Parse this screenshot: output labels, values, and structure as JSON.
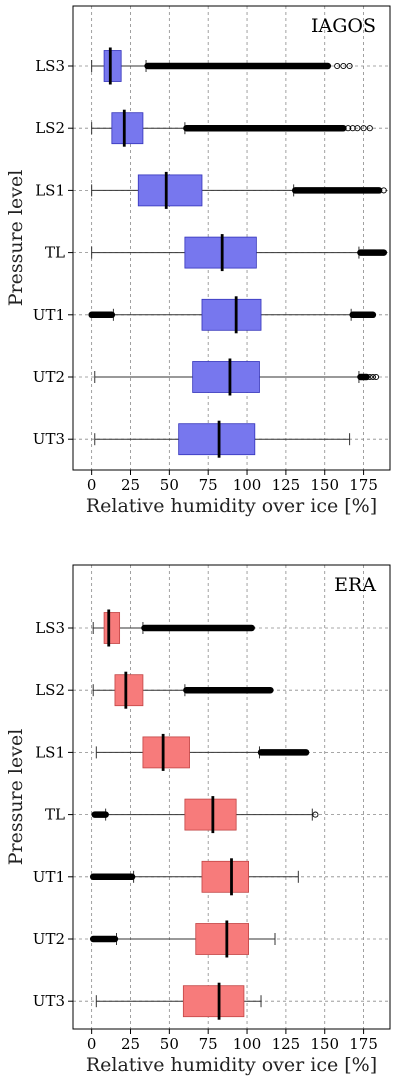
{
  "chart_data": [
    {
      "type": "boxplot",
      "title": "IAGOS",
      "xlabel": "Relative humidity over ice [%]",
      "ylabel": "Pressure level",
      "xlim": [
        -12,
        192
      ],
      "xticks": [
        0,
        25,
        50,
        75,
        100,
        125,
        150,
        175
      ],
      "grid": true,
      "box_color": "#7777ee",
      "box_edge": "#3333bb",
      "categories": [
        "LS3",
        "LS2",
        "LS1",
        "TL",
        "UT1",
        "UT2",
        "UT3"
      ],
      "boxes": [
        {
          "label": "LS3",
          "whislo": 0,
          "q1": 8,
          "med": 12,
          "q3": 19,
          "whishi": 35,
          "fliers": [
            [
              36,
              152
            ],
            [
              158,
              162,
              166
            ]
          ]
        },
        {
          "label": "LS2",
          "whislo": 0,
          "q1": 13,
          "med": 21,
          "q3": 33,
          "whishi": 60,
          "fliers": [
            [
              61,
              162
            ],
            [
              165,
              168,
              171,
              175,
              179
            ]
          ]
        },
        {
          "label": "LS1",
          "whislo": 0,
          "q1": 30,
          "med": 48,
          "q3": 71,
          "whishi": 130,
          "fliers": [
            [
              131,
              185
            ],
            [
              188
            ]
          ]
        },
        {
          "label": "TL",
          "whislo": 0,
          "q1": 60,
          "med": 84,
          "q3": 106,
          "whishi": 172,
          "fliers": [
            [
              173,
              188
            ]
          ]
        },
        {
          "label": "UT1",
          "whislo": 14,
          "q1": 71,
          "med": 93,
          "q3": 109,
          "whishi": 167,
          "fliers": [
            [
              0,
              13
            ],
            [
              168,
              181
            ]
          ]
        },
        {
          "label": "UT2",
          "whislo": 2,
          "q1": 65,
          "med": 89,
          "q3": 108,
          "whishi": 172,
          "fliers": [
            [
              173,
              177
            ],
            [
              179,
              181,
              183
            ]
          ]
        },
        {
          "label": "UT3",
          "whislo": 2,
          "q1": 56,
          "med": 82,
          "q3": 105,
          "whishi": 166,
          "fliers": []
        }
      ]
    },
    {
      "type": "boxplot",
      "title": "ERA",
      "xlabel": "Relative humidity over ice [%]",
      "ylabel": "Pressure level",
      "xlim": [
        -12,
        192
      ],
      "xticks": [
        0,
        25,
        50,
        75,
        100,
        125,
        150,
        175
      ],
      "grid": true,
      "box_color": "#f77b7b",
      "box_edge": "#c24444",
      "categories": [
        "LS3",
        "LS2",
        "LS1",
        "TL",
        "UT1",
        "UT2",
        "UT3"
      ],
      "boxes": [
        {
          "label": "LS3",
          "whislo": 1,
          "q1": 8,
          "med": 11,
          "q3": 18,
          "whishi": 33,
          "fliers": [
            [
              34,
              103
            ]
          ]
        },
        {
          "label": "LS2",
          "whislo": 1,
          "q1": 15,
          "med": 22,
          "q3": 33,
          "whishi": 60,
          "fliers": [
            [
              61,
              115
            ]
          ]
        },
        {
          "label": "LS1",
          "whislo": 3,
          "q1": 33,
          "med": 46,
          "q3": 63,
          "whishi": 108,
          "fliers": [
            [
              109,
              138
            ]
          ]
        },
        {
          "label": "TL",
          "whislo": 9,
          "q1": 60,
          "med": 78,
          "q3": 93,
          "whishi": 142,
          "fliers": [
            [
              2,
              9
            ],
            [
              144
            ]
          ]
        },
        {
          "label": "UT1",
          "whislo": 27,
          "q1": 71,
          "med": 90,
          "q3": 101,
          "whishi": 133,
          "fliers": [
            [
              1,
              26
            ]
          ]
        },
        {
          "label": "UT2",
          "whislo": 16,
          "q1": 67,
          "med": 87,
          "q3": 101,
          "whishi": 118,
          "fliers": [
            [
              1,
              15
            ]
          ]
        },
        {
          "label": "UT3",
          "whislo": 3,
          "q1": 59,
          "med": 82,
          "q3": 98,
          "whishi": 109,
          "fliers": []
        }
      ]
    }
  ]
}
